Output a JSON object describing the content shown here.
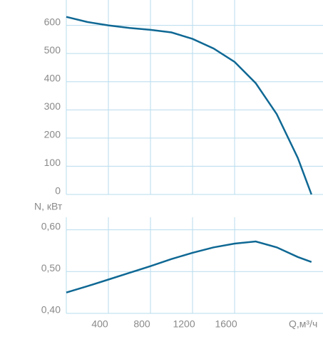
{
  "chart_data": [
    {
      "type": "line",
      "color": "#0f6894",
      "grid": true,
      "x": [
        0,
        200,
        400,
        600,
        800,
        1000,
        1200,
        1400,
        1600,
        1800,
        2000,
        2200,
        2330
      ],
      "values": [
        630,
        612,
        600,
        591,
        584,
        575,
        552,
        518,
        470,
        395,
        285,
        130,
        0
      ],
      "xlim": [
        0,
        2440
      ],
      "ylim": [
        0,
        690
      ],
      "yticks": [
        0,
        100,
        200,
        300,
        400,
        500,
        600
      ],
      "xticks": [
        400,
        800,
        1200,
        1600
      ]
    },
    {
      "type": "line",
      "color": "#0f6894",
      "grid": true,
      "ylabel": "N, кВт",
      "xlabel": "Q,м³/ч",
      "x": [
        0,
        200,
        400,
        600,
        800,
        1000,
        1200,
        1400,
        1600,
        1800,
        2000,
        2200,
        2330
      ],
      "values": [
        0.45,
        0.465,
        0.481,
        0.497,
        0.513,
        0.53,
        0.545,
        0.558,
        0.567,
        0.572,
        0.558,
        0.535,
        0.523
      ],
      "xlim": [
        0,
        2440
      ],
      "ylim": [
        0.4,
        0.63
      ],
      "yticks": [
        {
          "value": 0.4,
          "label": "0,40"
        },
        {
          "value": 0.5,
          "label": "0,50"
        },
        {
          "value": 0.6,
          "label": "0,60"
        }
      ],
      "xticks": [
        400,
        800,
        1200,
        1600
      ]
    }
  ]
}
